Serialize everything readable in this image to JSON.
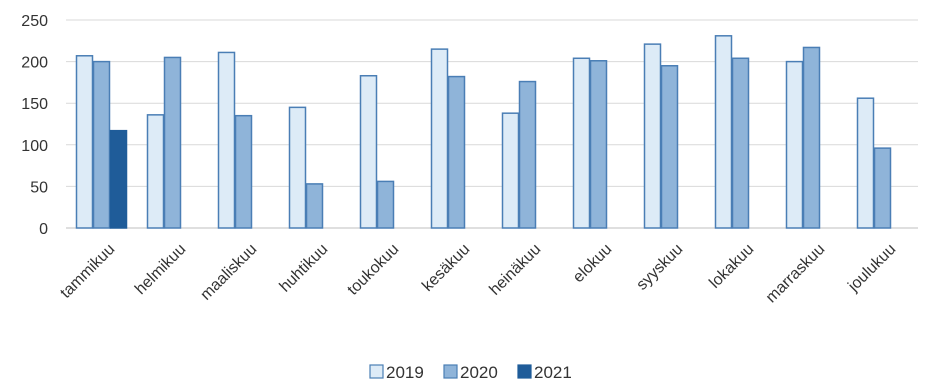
{
  "chart_data": {
    "type": "bar",
    "title": "",
    "xlabel": "",
    "ylabel": "",
    "ylim": [
      0,
      250
    ],
    "yticks": [
      0,
      50,
      100,
      150,
      200,
      250
    ],
    "grid": true,
    "legend_position": "bottom",
    "categories": [
      "tammikuu",
      "helmikuu",
      "maaliskuu",
      "huhtikuu",
      "toukokuu",
      "kesäkuu",
      "heinäkuu",
      "elokuu",
      "syyskuu",
      "lokakuu",
      "marraskuu",
      "joulukuu"
    ],
    "series": [
      {
        "name": "2019",
        "color": "#DDEBF7",
        "stroke": "#4A7EB5",
        "values": [
          207,
          136,
          211,
          145,
          183,
          215,
          138,
          204,
          221,
          231,
          200,
          156
        ]
      },
      {
        "name": "2020",
        "color": "#8FB4D9",
        "stroke": "#4A7EB5",
        "values": [
          200,
          205,
          135,
          53,
          56,
          182,
          176,
          201,
          195,
          204,
          217,
          96
        ]
      },
      {
        "name": "2021",
        "color": "#1F5C99",
        "stroke": "#1F5C99",
        "values": [
          117,
          null,
          null,
          null,
          null,
          null,
          null,
          null,
          null,
          null,
          null,
          null
        ]
      }
    ]
  }
}
